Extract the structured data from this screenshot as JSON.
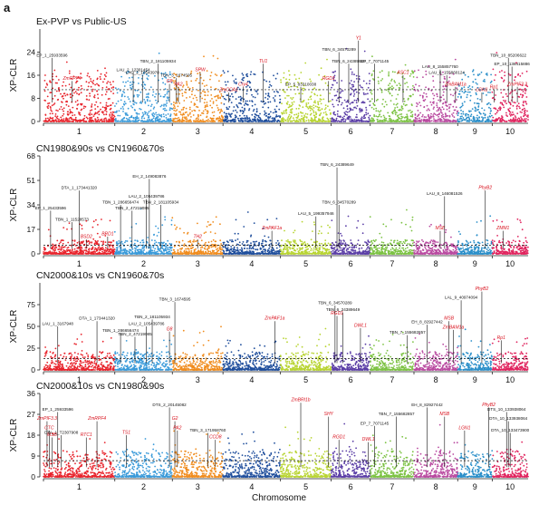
{
  "figure": {
    "panel_label": "a",
    "x_axis_label": "Chromosome",
    "y_axis_label": "XP-CLR"
  },
  "chart_data": [
    {
      "type": "scatter",
      "title": "Ex-PVP vs Public-US",
      "ylabel": "XP-CLR",
      "xlabel": "Chromosome",
      "ylim": [
        0,
        32
      ],
      "yticks": [
        0,
        8,
        16,
        24
      ],
      "threshold": 11,
      "categories": [
        "1",
        "2",
        "3",
        "4",
        "5",
        "6",
        "7",
        "8",
        "9",
        "10"
      ],
      "colors": [
        "#e8242c",
        "#3a9ad9",
        "#f08c1e",
        "#1f4e9c",
        "#b8d432",
        "#5b3ea6",
        "#7cc243",
        "#b94aa0",
        "#2b8fc9",
        "#e0245e"
      ],
      "annotations": [
        {
          "chrom": 1,
          "pos": 0.12,
          "value": 22,
          "label": "EP_1_25933596",
          "red": false
        },
        {
          "chrom": 1,
          "pos": 0.4,
          "value": 14,
          "label": "ZmRPF4",
          "red": true
        },
        {
          "chrom": 2,
          "pos": 0.32,
          "value": 17,
          "label": "LAU_2_12301454",
          "red": false
        },
        {
          "chrom": 2,
          "pos": 0.48,
          "value": 16,
          "label": "LAU_2_10543978",
          "red": false
        },
        {
          "chrom": 2,
          "pos": 0.75,
          "value": 20,
          "label": "TBN_2_181105934",
          "red": false
        },
        {
          "chrom": 2,
          "pos": 0.95,
          "value": 13,
          "label": "G8",
          "red": true
        },
        {
          "chrom": 3,
          "pos": 0.08,
          "value": 15,
          "label": "TBN_3_1674595",
          "red": false
        },
        {
          "chrom": 3,
          "pos": 0.12,
          "value": 12,
          "label": "PA2",
          "red": true
        },
        {
          "chrom": 3,
          "pos": 0.55,
          "value": 17,
          "label": "SPW",
          "red": true
        },
        {
          "chrom": 4,
          "pos": 0.1,
          "value": 10,
          "label": "ZmCCA1",
          "red": true
        },
        {
          "chrom": 4,
          "pos": 0.35,
          "value": 12,
          "label": "Cry4",
          "red": true
        },
        {
          "chrom": 4,
          "pos": 0.7,
          "value": 20,
          "label": "TU1",
          "red": true
        },
        {
          "chrom": 5,
          "pos": 0.4,
          "value": 12,
          "label": "EP_5_83310038",
          "red": false
        },
        {
          "chrom": 5,
          "pos": 0.95,
          "value": 14,
          "label": "RGD1",
          "red": true
        },
        {
          "chrom": 6,
          "pos": 0.2,
          "value": 24,
          "label": "TBN_6_34570289",
          "red": false
        },
        {
          "chrom": 6,
          "pos": 0.45,
          "value": 20,
          "label": "TBN_6_24389649",
          "red": false
        },
        {
          "chrom": 6,
          "pos": 0.7,
          "value": 28,
          "label": "Y1",
          "red": true
        },
        {
          "chrom": 7,
          "pos": 0.1,
          "value": 20,
          "label": "EP_7_7071145",
          "red": false
        },
        {
          "chrom": 7,
          "pos": 0.75,
          "value": 16,
          "label": "ASC1",
          "red": true
        },
        {
          "chrom": 8,
          "pos": 0.6,
          "value": 18,
          "label": "LAU_8_155857760",
          "red": false
        },
        {
          "chrom": 8,
          "pos": 0.75,
          "value": 16,
          "label": "LAU_8_155860124",
          "red": false
        },
        {
          "chrom": 8,
          "pos": 0.95,
          "value": 12,
          "label": "ZmBAM1a",
          "red": true
        },
        {
          "chrom": 9,
          "pos": 0.7,
          "value": 10,
          "label": "LGN1",
          "red": true
        },
        {
          "chrom": 10,
          "pos": 0.05,
          "value": 11,
          "label": "Rp1",
          "red": true
        },
        {
          "chrom": 10,
          "pos": 0.45,
          "value": 22,
          "label": "TBN_10_85206622",
          "red": false
        },
        {
          "chrom": 10,
          "pos": 0.55,
          "value": 19,
          "label": "EP_10_138415886",
          "red": false
        },
        {
          "chrom": 10,
          "pos": 0.7,
          "value": 12,
          "label": "ZmPIF3.3",
          "red": true
        }
      ]
    },
    {
      "type": "scatter",
      "title": "CN1980&90s vs  CN1960&70s",
      "ylabel": "XP-CLR",
      "xlabel": "Chromosome",
      "ylim": [
        0,
        68
      ],
      "yticks": [
        0,
        17,
        34,
        51,
        68
      ],
      "threshold": 6,
      "categories": [
        "1",
        "2",
        "3",
        "4",
        "5",
        "6",
        "7",
        "8",
        "9",
        "10"
      ],
      "colors": [
        "#e8242c",
        "#3a9ad9",
        "#f08c1e",
        "#1f4e9c",
        "#b8d432",
        "#5b3ea6",
        "#7cc243",
        "#b94aa0",
        "#2b8fc9",
        "#e0245e"
      ],
      "annotations": [
        {
          "chrom": 1,
          "pos": 0.1,
          "value": 30,
          "label": "EP_1_25433596",
          "red": false
        },
        {
          "chrom": 1,
          "pos": 0.4,
          "value": 22,
          "label": "TBN_1_11528573",
          "red": false
        },
        {
          "chrom": 1,
          "pos": 0.5,
          "value": 44,
          "label": "DTA_1_173441320",
          "red": false
        },
        {
          "chrom": 1,
          "pos": 0.6,
          "value": 10,
          "label": "BSD2",
          "red": true
        },
        {
          "chrom": 1,
          "pos": 0.9,
          "value": 12,
          "label": "BRD1",
          "red": true
        },
        {
          "chrom": 2,
          "pos": 0.1,
          "value": 34,
          "label": "TBN_1_286656474",
          "red": false
        },
        {
          "chrom": 2,
          "pos": 0.3,
          "value": 30,
          "label": "TBN_2_47219085",
          "red": false
        },
        {
          "chrom": 2,
          "pos": 0.55,
          "value": 38,
          "label": "LAU_2_105439786",
          "red": false
        },
        {
          "chrom": 2,
          "pos": 0.6,
          "value": 52,
          "label": "EH_2_149083876",
          "red": false
        },
        {
          "chrom": 2,
          "pos": 0.8,
          "value": 34,
          "label": "TBN_2_181105934",
          "red": false
        },
        {
          "chrom": 3,
          "pos": 0.5,
          "value": 10,
          "label": "TH2",
          "red": true
        },
        {
          "chrom": 4,
          "pos": 0.85,
          "value": 16,
          "label": "ZmPAF1a",
          "red": true
        },
        {
          "chrom": 5,
          "pos": 0.7,
          "value": 26,
          "label": "LAU_5_199357946",
          "red": false
        },
        {
          "chrom": 6,
          "pos": 0.15,
          "value": 60,
          "label": "TBN_6_24389649",
          "red": false
        },
        {
          "chrom": 6,
          "pos": 0.2,
          "value": 34,
          "label": "TBN_6_34570289",
          "red": false
        },
        {
          "chrom": 8,
          "pos": 0.6,
          "value": 16,
          "label": "MSB",
          "red": true
        },
        {
          "chrom": 8,
          "pos": 0.7,
          "value": 40,
          "label": "LAU_8_146081526",
          "red": false
        },
        {
          "chrom": 9,
          "pos": 0.8,
          "value": 44,
          "label": "PhyB2",
          "red": true
        },
        {
          "chrom": 10,
          "pos": 0.3,
          "value": 16,
          "label": "ZMM1",
          "red": true
        }
      ]
    },
    {
      "type": "scatter",
      "title": "CN2000&10s vs  CN1960&70s",
      "ylabel": "XP-CLR",
      "xlabel": "Chromosome",
      "ylim": [
        0,
        100
      ],
      "yticks": [
        0,
        25,
        50,
        75
      ],
      "threshold": 13,
      "categories": [
        "1",
        "2",
        "3",
        "4",
        "5",
        "6",
        "7",
        "8",
        "9",
        "10"
      ],
      "colors": [
        "#e8242c",
        "#3a9ad9",
        "#f08c1e",
        "#1f4e9c",
        "#b8d432",
        "#5b3ea6",
        "#7cc243",
        "#b94aa0",
        "#2b8fc9",
        "#e0245e"
      ],
      "annotations": [
        {
          "chrom": 1,
          "pos": 0.2,
          "value": 50,
          "label": "LAU_1_3167948",
          "red": false
        },
        {
          "chrom": 1,
          "pos": 0.75,
          "value": 56,
          "label": "DTA_1_173441320",
          "red": false
        },
        {
          "chrom": 2,
          "pos": 0.1,
          "value": 42,
          "label": "TBN_1_286656474",
          "red": false
        },
        {
          "chrom": 2,
          "pos": 0.35,
          "value": 38,
          "label": "TBN_2_47219085",
          "red": false
        },
        {
          "chrom": 2,
          "pos": 0.55,
          "value": 50,
          "label": "LAU_2_105439786",
          "red": false
        },
        {
          "chrom": 2,
          "pos": 0.65,
          "value": 58,
          "label": "TBN_2_181105934",
          "red": false
        },
        {
          "chrom": 2,
          "pos": 0.95,
          "value": 44,
          "label": "G8",
          "red": true
        },
        {
          "chrom": 3,
          "pos": 0.05,
          "value": 78,
          "label": "TBN_3_1674595",
          "red": false
        },
        {
          "chrom": 4,
          "pos": 0.9,
          "value": 56,
          "label": "ZmPAF1a",
          "red": true
        },
        {
          "chrom": 6,
          "pos": 0.1,
          "value": 74,
          "label": "TBN_6_34570289",
          "red": false
        },
        {
          "chrom": 6,
          "pos": 0.15,
          "value": 62,
          "label": "RGD1",
          "red": true
        },
        {
          "chrom": 6,
          "pos": 0.3,
          "value": 66,
          "label": "TBN_6_24389649",
          "red": false
        },
        {
          "chrom": 6,
          "pos": 0.75,
          "value": 48,
          "label": "DWL1",
          "red": true
        },
        {
          "chrom": 7,
          "pos": 0.85,
          "value": 40,
          "label": "TBN_7_155682857",
          "red": false
        },
        {
          "chrom": 8,
          "pos": 0.3,
          "value": 52,
          "label": "EH_8_82927442",
          "red": false
        },
        {
          "chrom": 8,
          "pos": 0.8,
          "value": 56,
          "label": "MSB",
          "red": true
        },
        {
          "chrom": 8,
          "pos": 0.9,
          "value": 46,
          "label": "ZmBAM1a",
          "red": true
        },
        {
          "chrom": 9,
          "pos": 0.1,
          "value": 80,
          "label": "LAL_9_40974094",
          "red": false
        },
        {
          "chrom": 9,
          "pos": 0.7,
          "value": 90,
          "label": "PhyB2",
          "red": true
        },
        {
          "chrom": 10,
          "pos": 0.25,
          "value": 34,
          "label": "Rp1",
          "red": true
        }
      ]
    },
    {
      "type": "scatter",
      "title": "CN2000&10s vs  CN1980&90s",
      "ylabel": "XP-CLR",
      "xlabel": "Chromosome",
      "ylim": [
        0,
        36
      ],
      "yticks": [
        0,
        9,
        18,
        27,
        36
      ],
      "threshold": 7,
      "categories": [
        "1",
        "2",
        "3",
        "4",
        "5",
        "6",
        "7",
        "8",
        "9",
        "10"
      ],
      "colors": [
        "#e8242c",
        "#3a9ad9",
        "#f08c1e",
        "#1f4e9c",
        "#b8d432",
        "#5b3ea6",
        "#7cc243",
        "#b94aa0",
        "#2b8fc9",
        "#e0245e"
      ],
      "annotations": [
        {
          "chrom": 1,
          "pos": 0.05,
          "value": 24,
          "label": "ZmPIF3.3",
          "red": true
        },
        {
          "chrom": 1,
          "pos": 0.08,
          "value": 20,
          "label": "CTC",
          "red": true
        },
        {
          "chrom": 1,
          "pos": 0.12,
          "value": 17,
          "label": "MSB",
          "red": true
        },
        {
          "chrom": 1,
          "pos": 0.2,
          "value": 28,
          "label": "EP_1_25933596",
          "red": false
        },
        {
          "chrom": 1,
          "pos": 0.25,
          "value": 18,
          "label": "DTA_1_T2307908",
          "red": false
        },
        {
          "chrom": 1,
          "pos": 0.6,
          "value": 17,
          "label": "RTC1",
          "red": true
        },
        {
          "chrom": 1,
          "pos": 0.75,
          "value": 24,
          "label": "ZmRPF4",
          "red": true
        },
        {
          "chrom": 2,
          "pos": 0.2,
          "value": 18,
          "label": "TS1",
          "red": true
        },
        {
          "chrom": 2,
          "pos": 0.95,
          "value": 30,
          "label": "DTS_2_20145082",
          "red": false
        },
        {
          "chrom": 3,
          "pos": 0.05,
          "value": 24,
          "label": "G2",
          "red": true
        },
        {
          "chrom": 3,
          "pos": 0.1,
          "value": 20,
          "label": "PA2",
          "red": true
        },
        {
          "chrom": 3,
          "pos": 0.7,
          "value": 19,
          "label": "TBN_3_171958760",
          "red": false
        },
        {
          "chrom": 3,
          "pos": 0.85,
          "value": 16,
          "label": "CCD8",
          "red": true
        },
        {
          "chrom": 5,
          "pos": 0.4,
          "value": 32,
          "label": "ZmBRI1b",
          "red": true
        },
        {
          "chrom": 5,
          "pos": 0.95,
          "value": 26,
          "label": "SHY",
          "red": true
        },
        {
          "chrom": 6,
          "pos": 0.2,
          "value": 16,
          "label": "RGD1",
          "red": true
        },
        {
          "chrom": 6,
          "pos": 0.95,
          "value": 15,
          "label": "DWL1",
          "red": true
        },
        {
          "chrom": 7,
          "pos": 0.1,
          "value": 22,
          "label": "EP_7_7071145",
          "red": false
        },
        {
          "chrom": 7,
          "pos": 0.6,
          "value": 26,
          "label": "TBN_7_155682857",
          "red": false
        },
        {
          "chrom": 8,
          "pos": 0.3,
          "value": 30,
          "label": "EH_8_82927442",
          "red": false
        },
        {
          "chrom": 8,
          "pos": 0.7,
          "value": 26,
          "label": "MSB",
          "red": true
        },
        {
          "chrom": 9,
          "pos": 0.2,
          "value": 20,
          "label": "LGN1",
          "red": true
        },
        {
          "chrom": 9,
          "pos": 0.9,
          "value": 30,
          "label": "PhyB2",
          "red": true
        },
        {
          "chrom": 10,
          "pos": 0.4,
          "value": 28,
          "label": "DTS_10_133938064",
          "red": false
        },
        {
          "chrom": 10,
          "pos": 0.45,
          "value": 24,
          "label": "DTA_10_133938064",
          "red": false
        },
        {
          "chrom": 10,
          "pos": 0.5,
          "value": 19,
          "label": "DTA_10_133473900",
          "red": false
        }
      ]
    }
  ]
}
